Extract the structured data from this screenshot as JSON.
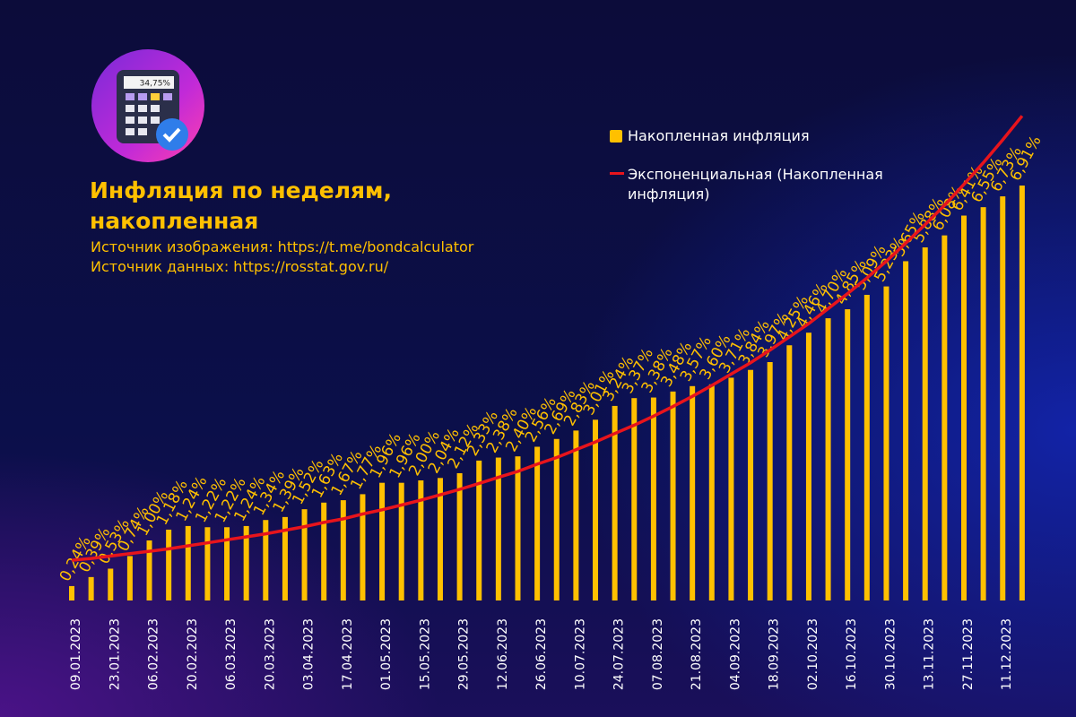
{
  "chart_data": {
    "type": "bar",
    "title": "Инфляция по неделям, накопленная",
    "annotations": [
      "Источник изображения: https://t.me/bondcalculator",
      "Источник данных: https://rosstat.gov.ru/"
    ],
    "logo_display": "34,75%",
    "categories": [
      "09.01.2023",
      null,
      "23.01.2023",
      null,
      "06.02.2023",
      null,
      "20.02.2023",
      null,
      "06.03.2023",
      null,
      "20.03.2023",
      null,
      "03.04.2023",
      null,
      "17.04.2023",
      null,
      "01.05.2023",
      null,
      "15.05.2023",
      null,
      "29.05.2023",
      null,
      "12.06.2023",
      null,
      "26.06.2023",
      null,
      "10.07.2023",
      null,
      "24.07.2023",
      null,
      "07.08.2023",
      null,
      "21.08.2023",
      null,
      "04.09.2023",
      null,
      "18.09.2023",
      null,
      "02.10.2023",
      null,
      "16.10.2023",
      null,
      "30.10.2023",
      null,
      "13.11.2023",
      null,
      "27.11.2023",
      null,
      "11.12.2023",
      null
    ],
    "series": [
      {
        "name": "Накопленная инфляция",
        "color": "#ffc000",
        "values": [
          0.24,
          0.39,
          0.53,
          0.74,
          1.0,
          1.18,
          1.24,
          1.22,
          1.22,
          1.24,
          1.34,
          1.39,
          1.52,
          1.63,
          1.67,
          1.77,
          1.96,
          1.96,
          2.0,
          2.04,
          2.12,
          2.33,
          2.38,
          2.4,
          2.56,
          2.69,
          2.83,
          3.01,
          3.24,
          3.37,
          3.38,
          3.48,
          3.57,
          3.6,
          3.71,
          3.84,
          3.97,
          4.25,
          4.46,
          4.7,
          4.85,
          5.09,
          5.23,
          5.65,
          5.88,
          6.08,
          6.41,
          6.55,
          6.73,
          6.91
        ],
        "value_labels": [
          "0,24%",
          "0,39%",
          "0,53%",
          "0,74%",
          "1,00%",
          "1,18%",
          "1,24%",
          "1,22%",
          "1,22%",
          "1,24%",
          "1,34%",
          "1,39%",
          "1,52%",
          "1,63%",
          "1,67%",
          "1,77%",
          "1,96%",
          "1,96%",
          "2,00%",
          "2,04%",
          "2,12%",
          "2,33%",
          "2,38%",
          "2,40%",
          "2,56%",
          "2,69%",
          "2,83%",
          "3,01%",
          "3,24%",
          "3,37%",
          "3,38%",
          "3,48%",
          "3,57%",
          "3,60%",
          "3,71%",
          "3,84%",
          "3,97%",
          "4,25%",
          "4,46%",
          "4,70%",
          "4,85%",
          "5,09%",
          "5,23%",
          "5,65%",
          "5,88%",
          "6,08%",
          "6,41%",
          "6,55%",
          "6,73%",
          "6,91%"
        ]
      },
      {
        "name": "Экспоненциальная (Накопленная инфляция)",
        "color": "#e8141c",
        "type": "line",
        "values": [
          0.67,
          0.7,
          0.74,
          0.78,
          0.82,
          0.86,
          0.91,
          0.96,
          1.01,
          1.06,
          1.11,
          1.17,
          1.23,
          1.3,
          1.36,
          1.44,
          1.51,
          1.59,
          1.67,
          1.76,
          1.85,
          1.95,
          2.05,
          2.15,
          2.27,
          2.38,
          2.51,
          2.64,
          2.78,
          2.92,
          3.07,
          3.23,
          3.4,
          3.58,
          3.77,
          3.96,
          4.17,
          4.39,
          4.61,
          4.86,
          5.11,
          5.37,
          5.65,
          5.95,
          6.26,
          6.58,
          6.93,
          7.29,
          7.67,
          8.07
        ]
      }
    ],
    "ylim": [
      0,
      8
    ]
  }
}
